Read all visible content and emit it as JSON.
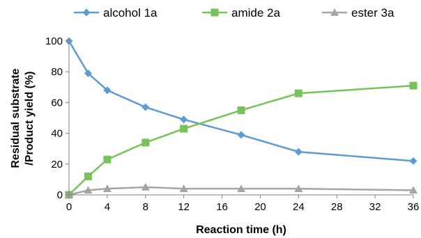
{
  "chart_data": {
    "type": "line",
    "title": "",
    "xlabel": "Reaction time (h)",
    "ylabel_lines": [
      "Residual substrate",
      "/Product yield (%)"
    ],
    "x_ticks": [
      0,
      4,
      8,
      12,
      16,
      20,
      24,
      28,
      32,
      36
    ],
    "y_ticks": [
      0,
      20,
      40,
      60,
      80,
      100
    ],
    "xlim": [
      0,
      36
    ],
    "ylim": [
      0,
      100
    ],
    "grid": false,
    "legend_position": "top",
    "series": [
      {
        "name": "alcohol 1a",
        "color": "#5b9bd5",
        "marker": "diamond",
        "x": [
          0,
          2,
          4,
          8,
          12,
          18,
          24,
          36
        ],
        "y": [
          100,
          79,
          68,
          57,
          49,
          39,
          28,
          22
        ]
      },
      {
        "name": "amide 2a",
        "color": "#78c25a",
        "marker": "square",
        "x": [
          0,
          2,
          4,
          8,
          12,
          18,
          24,
          36
        ],
        "y": [
          0,
          12,
          23,
          34,
          43,
          55,
          66,
          71
        ]
      },
      {
        "name": "ester 3a",
        "color": "#a5a5a5",
        "marker": "triangle",
        "x": [
          0,
          2,
          4,
          8,
          12,
          18,
          24,
          36
        ],
        "y": [
          0,
          3,
          4,
          5,
          4,
          4,
          4,
          3
        ]
      }
    ]
  }
}
